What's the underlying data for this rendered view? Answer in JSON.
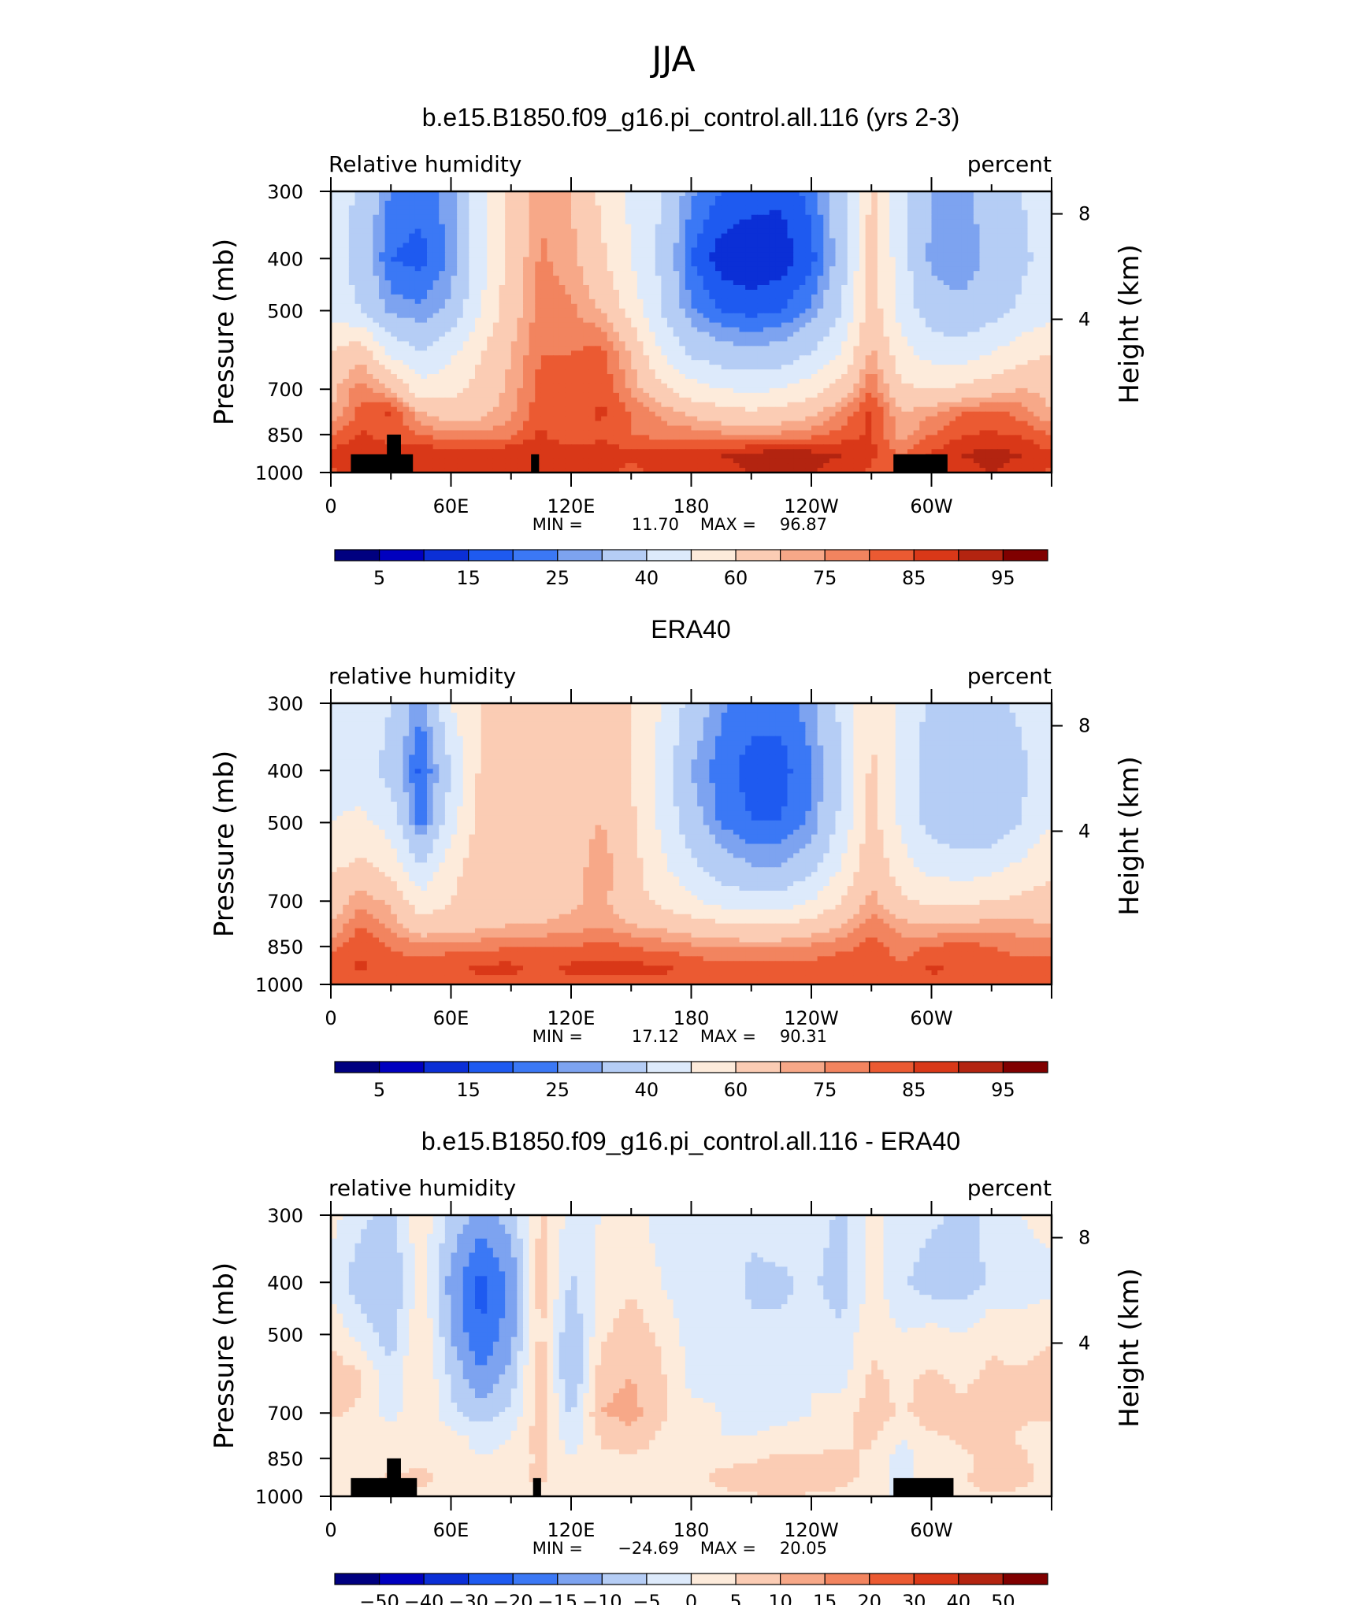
{
  "figure": {
    "title": "JJA"
  },
  "colors": {
    "rh_levels": [
      "#000080",
      "#0000bf",
      "#0b2fd6",
      "#1e5af0",
      "#3b78f5",
      "#7da3f0",
      "#b5cdf5",
      "#ddeafb",
      "#fdebdb",
      "#fbccb4",
      "#f7a888",
      "#f2845f",
      "#eb5a32",
      "#d93818",
      "#b32410",
      "#800000"
    ],
    "diff_levels": [
      "#000080",
      "#0000bf",
      "#0b2fd6",
      "#1e5af0",
      "#3b78f5",
      "#7da3f0",
      "#b5cdf5",
      "#ddeafb",
      "#fdebdb",
      "#fbccb4",
      "#f7a888",
      "#f2845f",
      "#eb5a32",
      "#d93818",
      "#b32410",
      "#800000"
    ],
    "terrain": "#000000"
  },
  "chart_data": [
    {
      "type": "heatmap",
      "title": "b.e15.B1850.f09_g16.pi_control.all.116 (yrs 2-3)",
      "left_label": "Relative humidity",
      "right_label": "percent",
      "ylabel": "Pressure (mb)",
      "ylabel_right": "Height (km)",
      "x_tick_labels": [
        "0",
        "60E",
        "120E",
        "180",
        "120W",
        "60W"
      ],
      "x_ticks_deg": [
        0,
        60,
        120,
        180,
        240,
        300
      ],
      "xlim": [
        0,
        360
      ],
      "y_tick_labels": [
        "300",
        "400",
        "500",
        "700",
        "850",
        "1000"
      ],
      "y_ticks_mb": [
        300,
        400,
        500,
        700,
        850,
        1000
      ],
      "ylim_mb": [
        1000,
        300
      ],
      "height_tick_labels": [
        "8",
        "4"
      ],
      "stats": {
        "min_label": "MIN =",
        "min": "11.70",
        "max_label": "MAX =",
        "max": "96.87"
      },
      "colorbar": {
        "labels": [
          "5",
          "15",
          "25",
          "40",
          "60",
          "75",
          "85",
          "95"
        ]
      },
      "field": {
        "x": [
          0,
          15,
          30,
          45,
          60,
          75,
          90,
          105,
          120,
          135,
          150,
          165,
          180,
          195,
          210,
          225,
          240,
          255,
          270,
          285,
          300,
          315,
          330,
          345,
          360
        ],
        "p": [
          300,
          400,
          500,
          600,
          700,
          775,
          850,
          925,
          1000
        ],
        "values": [
          [
            46,
            38,
            24,
            22,
            28,
            48,
            62,
            74,
            70,
            58,
            48,
            40,
            26,
            20,
            18,
            16,
            22,
            36,
            62,
            42,
            30,
            28,
            34,
            40,
            46
          ],
          [
            44,
            36,
            20,
            18,
            26,
            46,
            64,
            76,
            72,
            62,
            50,
            38,
            20,
            12,
            10,
            12,
            18,
            34,
            64,
            44,
            28,
            26,
            32,
            38,
            44
          ],
          [
            46,
            40,
            28,
            26,
            32,
            50,
            66,
            78,
            76,
            70,
            56,
            40,
            26,
            20,
            18,
            20,
            26,
            40,
            66,
            46,
            34,
            32,
            36,
            42,
            46
          ],
          [
            60,
            68,
            48,
            40,
            48,
            60,
            70,
            80,
            80,
            82,
            70,
            50,
            38,
            34,
            32,
            34,
            40,
            50,
            72,
            54,
            46,
            44,
            50,
            56,
            60
          ],
          [
            68,
            78,
            70,
            54,
            56,
            64,
            72,
            82,
            82,
            84,
            74,
            62,
            54,
            50,
            48,
            50,
            56,
            64,
            80,
            62,
            60,
            62,
            66,
            70,
            68
          ],
          [
            70,
            82,
            86,
            70,
            66,
            68,
            74,
            84,
            82,
            86,
            80,
            74,
            68,
            64,
            62,
            64,
            68,
            76,
            86,
            70,
            74,
            80,
            82,
            78,
            70
          ],
          [
            80,
            86,
            82,
            80,
            76,
            76,
            78,
            86,
            80,
            84,
            80,
            78,
            78,
            76,
            74,
            76,
            78,
            82,
            86,
            72,
            80,
            84,
            86,
            84,
            80
          ],
          [
            86,
            90,
            88,
            90,
            88,
            88,
            90,
            90,
            88,
            88,
            86,
            88,
            88,
            90,
            92,
            94,
            92,
            90,
            86,
            80,
            86,
            90,
            92,
            90,
            86
          ],
          [
            84,
            88,
            86,
            88,
            86,
            86,
            88,
            88,
            86,
            86,
            84,
            86,
            86,
            88,
            90,
            92,
            90,
            88,
            84,
            78,
            84,
            88,
            90,
            88,
            84
          ]
        ]
      },
      "terrain": [
        {
          "lon0": 10,
          "lon1": 41,
          "p": 925
        },
        {
          "lon0": 28,
          "lon1": 35,
          "p": 850
        },
        {
          "lon0": 100,
          "lon1": 104,
          "p": 925
        },
        {
          "lon0": 281,
          "lon1": 308,
          "p": 925
        }
      ]
    },
    {
      "type": "heatmap",
      "title": "ERA40",
      "left_label": "relative humidity",
      "right_label": "percent",
      "ylabel": "Pressure (mb)",
      "ylabel_right": "Height (km)",
      "x_tick_labels": [
        "0",
        "60E",
        "120E",
        "180",
        "120W",
        "60W"
      ],
      "x_ticks_deg": [
        0,
        60,
        120,
        180,
        240,
        300
      ],
      "xlim": [
        0,
        360
      ],
      "y_tick_labels": [
        "300",
        "400",
        "500",
        "700",
        "850",
        "1000"
      ],
      "y_ticks_mb": [
        300,
        400,
        500,
        700,
        850,
        1000
      ],
      "ylim_mb": [
        1000,
        300
      ],
      "height_tick_labels": [
        "8",
        "4"
      ],
      "stats": {
        "min_label": "MIN =",
        "min": "17.12",
        "max_label": "MAX =",
        "max": "90.31"
      },
      "colorbar": {
        "labels": [
          "5",
          "15",
          "25",
          "40",
          "60",
          "75",
          "85",
          "95"
        ]
      },
      "field": {
        "x": [
          0,
          15,
          30,
          45,
          60,
          75,
          90,
          105,
          120,
          135,
          150,
          165,
          180,
          195,
          210,
          225,
          240,
          255,
          270,
          285,
          300,
          315,
          330,
          345,
          360
        ],
        "p": [
          300,
          400,
          500,
          600,
          700,
          775,
          850,
          925,
          1000
        ],
        "values": [
          [
            48,
            48,
            40,
            26,
            50,
            60,
            66,
            64,
            62,
            66,
            60,
            50,
            36,
            26,
            22,
            22,
            28,
            42,
            60,
            48,
            38,
            36,
            38,
            42,
            48
          ],
          [
            46,
            46,
            36,
            18,
            40,
            62,
            66,
            64,
            64,
            68,
            60,
            46,
            30,
            22,
            18,
            18,
            24,
            40,
            62,
            46,
            34,
            30,
            32,
            38,
            46
          ],
          [
            50,
            52,
            46,
            22,
            46,
            64,
            68,
            66,
            66,
            70,
            62,
            48,
            34,
            24,
            20,
            20,
            26,
            42,
            64,
            48,
            36,
            32,
            32,
            40,
            50
          ],
          [
            58,
            62,
            56,
            40,
            56,
            66,
            68,
            66,
            66,
            74,
            64,
            52,
            42,
            34,
            30,
            30,
            36,
            50,
            68,
            54,
            46,
            44,
            46,
            52,
            58
          ],
          [
            64,
            74,
            68,
            54,
            60,
            66,
            68,
            68,
            68,
            72,
            64,
            58,
            52,
            46,
            44,
            44,
            50,
            60,
            72,
            62,
            58,
            58,
            60,
            62,
            64
          ],
          [
            70,
            80,
            74,
            64,
            64,
            68,
            70,
            70,
            72,
            74,
            70,
            68,
            64,
            62,
            60,
            60,
            64,
            70,
            78,
            72,
            70,
            72,
            72,
            72,
            70
          ],
          [
            78,
            84,
            80,
            76,
            78,
            78,
            80,
            80,
            80,
            82,
            80,
            78,
            76,
            74,
            74,
            74,
            76,
            78,
            82,
            78,
            80,
            82,
            80,
            78,
            78
          ],
          [
            82,
            86,
            82,
            84,
            84,
            86,
            86,
            84,
            86,
            86,
            86,
            86,
            84,
            82,
            82,
            82,
            82,
            84,
            84,
            80,
            86,
            84,
            82,
            82,
            82
          ],
          [
            82,
            84,
            82,
            82,
            82,
            84,
            84,
            84,
            84,
            84,
            84,
            84,
            82,
            82,
            82,
            82,
            82,
            84,
            84,
            80,
            84,
            82,
            82,
            82,
            82
          ]
        ]
      },
      "terrain": []
    },
    {
      "type": "heatmap",
      "title": "b.e15.B1850.f09_g16.pi_control.all.116 - ERA40",
      "left_label": "relative humidity",
      "right_label": "percent",
      "ylabel": "Pressure (mb)",
      "ylabel_right": "Height (km)",
      "x_tick_labels": [
        "0",
        "60E",
        "120E",
        "180",
        "120W",
        "60W"
      ],
      "x_ticks_deg": [
        0,
        60,
        120,
        180,
        240,
        300
      ],
      "xlim": [
        0,
        360
      ],
      "y_tick_labels": [
        "300",
        "400",
        "500",
        "700",
        "850",
        "1000"
      ],
      "y_ticks_mb": [
        300,
        400,
        500,
        700,
        850,
        1000
      ],
      "ylim_mb": [
        1000,
        300
      ],
      "height_tick_labels": [
        "8",
        "4"
      ],
      "stats": {
        "min_label": "MIN =",
        "min": "−24.69",
        "max_label": "MAX =",
        "max": "20.05"
      },
      "colorbar": {
        "labels": [
          "−50",
          "−40",
          "−30",
          "−20",
          "−15",
          "−10",
          "−5",
          "0",
          "5",
          "10",
          "15",
          "20",
          "30",
          "40",
          "50"
        ]
      },
      "field": {
        "x": [
          0,
          15,
          30,
          45,
          60,
          75,
          90,
          105,
          120,
          135,
          150,
          165,
          180,
          195,
          210,
          225,
          240,
          255,
          270,
          285,
          300,
          315,
          330,
          345,
          360
        ],
        "p": [
          300,
          400,
          500,
          600,
          700,
          775,
          850,
          925,
          1000
        ],
        "values": [
          [
            2,
            -4,
            -6,
            4,
            -6,
            -12,
            -8,
            6,
            -2,
            0,
            2,
            -2,
            -2,
            0,
            -4,
            -2,
            -2,
            -6,
            2,
            -2,
            -4,
            -6,
            -4,
            0,
            2
          ],
          [
            -2,
            -8,
            -10,
            2,
            -12,
            -22,
            -14,
            8,
            -6,
            2,
            4,
            0,
            -4,
            -2,
            -6,
            -6,
            -4,
            -8,
            2,
            -4,
            -8,
            -8,
            -4,
            -2,
            -2
          ],
          [
            4,
            -2,
            -8,
            6,
            -10,
            -20,
            -12,
            6,
            -10,
            4,
            8,
            4,
            -2,
            -2,
            -4,
            -4,
            -2,
            -4,
            4,
            0,
            2,
            0,
            4,
            2,
            4
          ],
          [
            8,
            6,
            -4,
            6,
            -6,
            -14,
            -8,
            10,
            -12,
            8,
            10,
            6,
            -2,
            -2,
            -2,
            -2,
            0,
            -2,
            6,
            4,
            6,
            4,
            6,
            6,
            8
          ],
          [
            6,
            4,
            -2,
            4,
            -4,
            -8,
            -4,
            8,
            -6,
            10,
            12,
            6,
            2,
            0,
            -2,
            -2,
            0,
            2,
            8,
            4,
            8,
            6,
            8,
            6,
            6
          ],
          [
            2,
            2,
            4,
            4,
            2,
            -2,
            0,
            8,
            -4,
            6,
            8,
            4,
            2,
            0,
            0,
            2,
            2,
            4,
            6,
            0,
            4,
            6,
            8,
            4,
            2
          ],
          [
            2,
            2,
            2,
            4,
            2,
            0,
            2,
            6,
            0,
            4,
            4,
            4,
            4,
            4,
            4,
            6,
            6,
            6,
            4,
            -2,
            2,
            4,
            6,
            6,
            2
          ],
          [
            4,
            4,
            6,
            6,
            4,
            4,
            4,
            6,
            2,
            2,
            2,
            4,
            4,
            6,
            8,
            10,
            8,
            6,
            4,
            -2,
            2,
            4,
            8,
            6,
            4
          ],
          [
            2,
            4,
            4,
            4,
            2,
            2,
            2,
            2,
            2,
            2,
            2,
            2,
            2,
            4,
            4,
            6,
            4,
            4,
            2,
            -2,
            2,
            4,
            4,
            4,
            2
          ]
        ]
      },
      "terrain": [
        {
          "lon0": 10,
          "lon1": 43,
          "p": 925
        },
        {
          "lon0": 28,
          "lon1": 35,
          "p": 850
        },
        {
          "lon0": 101,
          "lon1": 105,
          "p": 925
        },
        {
          "lon0": 281,
          "lon1": 311,
          "p": 925
        }
      ]
    }
  ]
}
